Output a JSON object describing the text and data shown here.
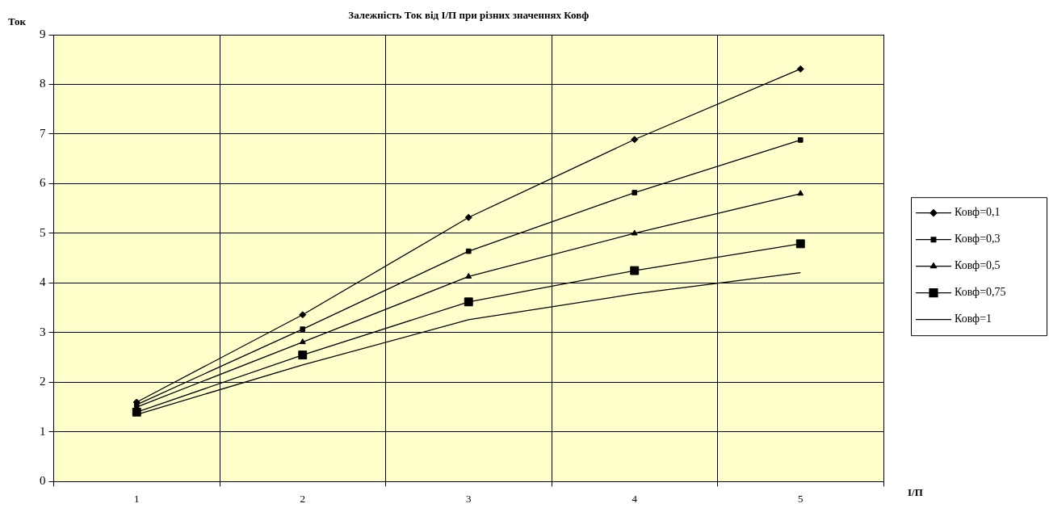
{
  "chart_data": {
    "type": "line",
    "title": "Залежність Ток від І/П при різних значеннях Ковф",
    "xlabel": "І/П",
    "ylabel": "Ток",
    "categories": [
      "1",
      "2",
      "3",
      "4",
      "5"
    ],
    "series": [
      {
        "name": "Ковф=0,1",
        "color": "#000000",
        "marker": "diamond",
        "values": [
          1.6,
          3.36,
          5.32,
          6.89,
          8.31
        ]
      },
      {
        "name": "Ковф=0,3",
        "color": "#000000",
        "marker": "square",
        "values": [
          1.55,
          3.07,
          4.64,
          5.82,
          6.88
        ]
      },
      {
        "name": "Ковф=0,5",
        "color": "#000000",
        "marker": "triangle",
        "values": [
          1.5,
          2.81,
          4.13,
          5.0,
          5.8
        ]
      },
      {
        "name": "Ковф=0,75",
        "color": "#000000",
        "marker": "square",
        "values": [
          1.4,
          2.55,
          3.62,
          4.25,
          4.79
        ]
      },
      {
        "name": "Ковф=1",
        "color": "#000000",
        "marker": "none",
        "values": [
          1.35,
          2.35,
          3.26,
          3.78,
          4.21
        ]
      }
    ],
    "ylim": [
      0,
      9
    ],
    "yticks": [
      0,
      1,
      2,
      3,
      4,
      5,
      6,
      7,
      8,
      9
    ],
    "grid": true,
    "legend": "right",
    "line_style": "solid"
  }
}
